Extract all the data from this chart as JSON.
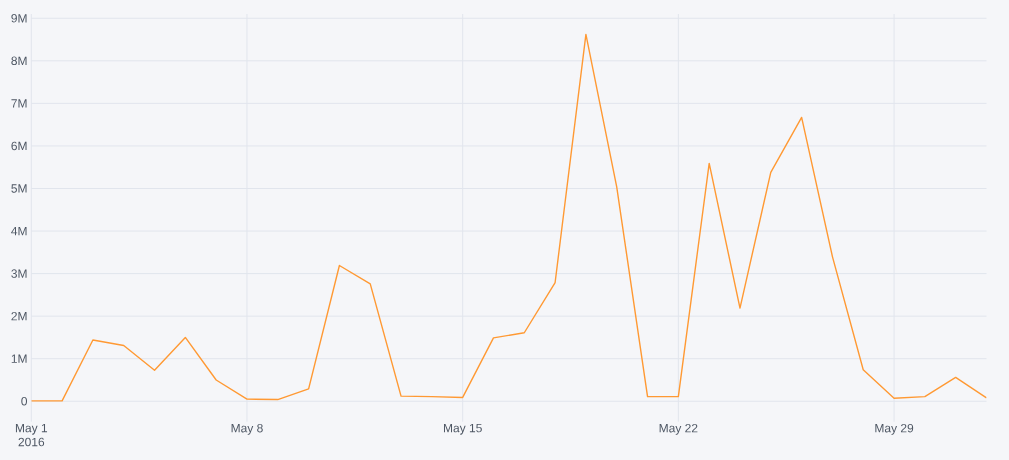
{
  "chart_data": {
    "type": "line",
    "x": [
      "2016-05-01",
      "2016-05-02",
      "2016-05-03",
      "2016-05-04",
      "2016-05-05",
      "2016-05-06",
      "2016-05-07",
      "2016-05-08",
      "2016-05-09",
      "2016-05-10",
      "2016-05-11",
      "2016-05-12",
      "2016-05-13",
      "2016-05-14",
      "2016-05-15",
      "2016-05-16",
      "2016-05-17",
      "2016-05-18",
      "2016-05-19",
      "2016-05-20",
      "2016-05-21",
      "2016-05-22",
      "2016-05-23",
      "2016-05-24",
      "2016-05-25",
      "2016-05-26",
      "2016-05-27",
      "2016-05-28",
      "2016-05-29",
      "2016-05-30",
      "2016-05-31",
      "2016-06-01"
    ],
    "series": [
      {
        "color": "#ff9933",
        "values": [
          10000,
          10000,
          1440000,
          1310000,
          730000,
          1500000,
          500000,
          50000,
          40000,
          290000,
          3190000,
          2760000,
          120000,
          110000,
          90000,
          1490000,
          1610000,
          2790000,
          8620000,
          5040000,
          110000,
          110000,
          5590000,
          2190000,
          5380000,
          6670000,
          3400000,
          740000,
          70000,
          110000,
          560000,
          80000
        ]
      }
    ],
    "xlim": [
      "2016-05-01",
      "2016-06-01"
    ],
    "xticks": [
      {
        "value": "2016-05-01",
        "label": "May 1\n2016"
      },
      {
        "value": "2016-05-08",
        "label": "May 8"
      },
      {
        "value": "2016-05-15",
        "label": "May 15"
      },
      {
        "value": "2016-05-22",
        "label": "May 22"
      },
      {
        "value": "2016-05-29",
        "label": "May 29"
      }
    ],
    "ylim": [
      -480000,
      9100000
    ],
    "yticks": [
      0,
      {
        "value": 1000000,
        "label": "1M"
      },
      {
        "value": 2000000,
        "label": "2M"
      },
      {
        "value": 3000000,
        "label": "3M"
      },
      {
        "value": 4000000,
        "label": "4M"
      },
      {
        "value": 5000000,
        "label": "5M"
      },
      {
        "value": 6000000,
        "label": "6M"
      },
      {
        "value": 7000000,
        "label": "7M"
      },
      {
        "value": 8000000,
        "label": "8M"
      },
      {
        "value": 9000000,
        "label": "9M"
      }
    ],
    "grid": true,
    "marker": "none",
    "line_style": "solid"
  }
}
